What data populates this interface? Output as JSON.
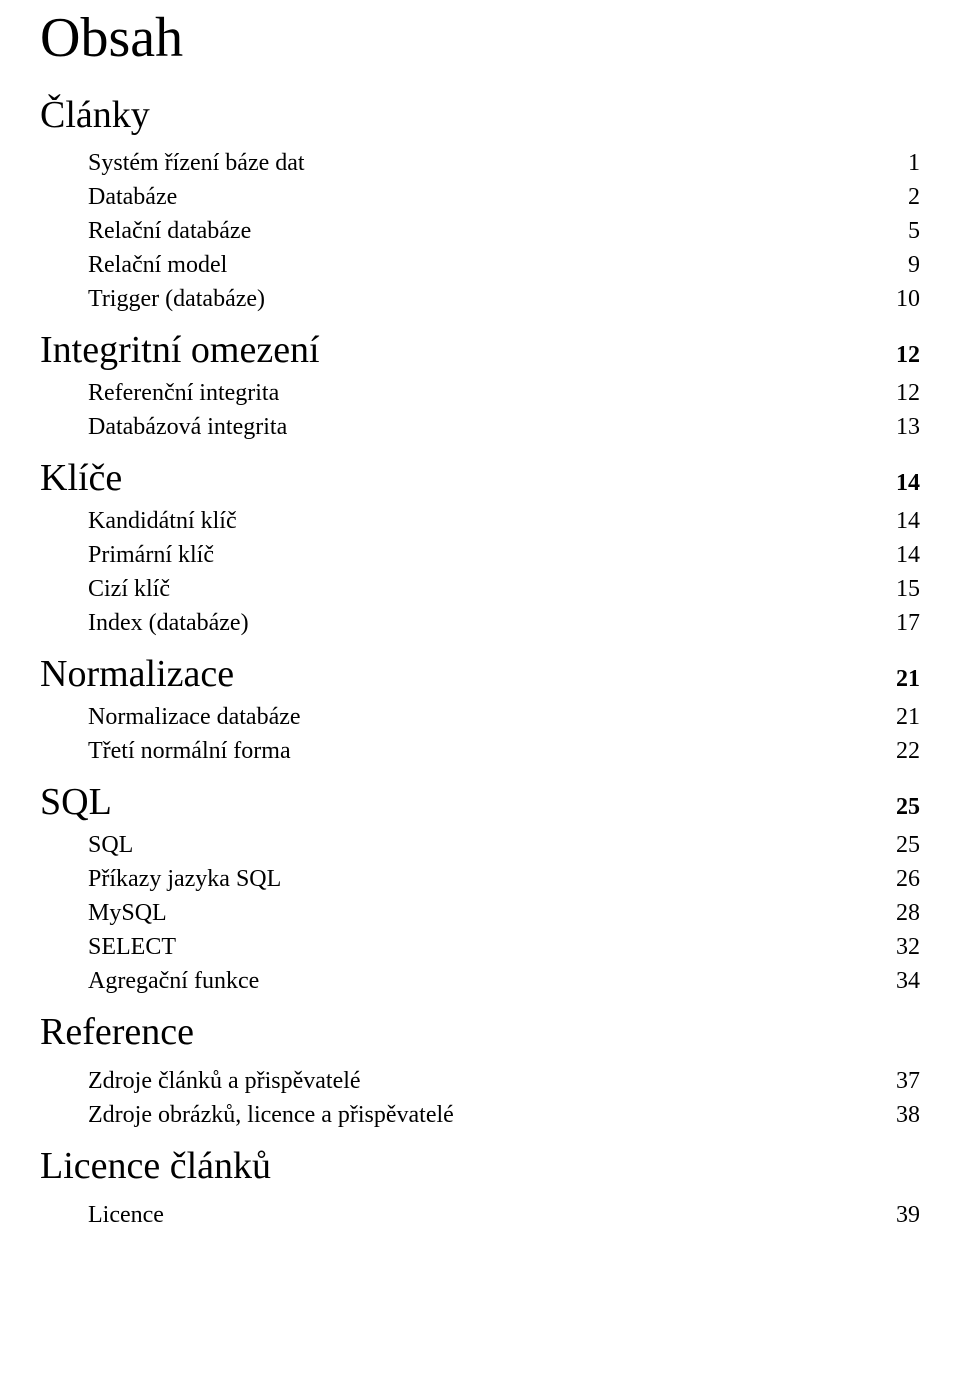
{
  "title": "Obsah",
  "sections": [
    {
      "heading": "Články",
      "page": null,
      "entries": [
        {
          "label": "Systém řízení báze dat",
          "page": "1"
        },
        {
          "label": "Databáze",
          "page": "2"
        },
        {
          "label": "Relační databáze",
          "page": "5"
        },
        {
          "label": "Relační model",
          "page": "9"
        },
        {
          "label": "Trigger (databáze)",
          "page": "10"
        }
      ]
    },
    {
      "heading": "Integritní omezení",
      "page": "12",
      "entries": [
        {
          "label": "Referenční integrita",
          "page": "12"
        },
        {
          "label": "Databázová integrita",
          "page": "13"
        }
      ]
    },
    {
      "heading": "Klíče",
      "page": "14",
      "entries": [
        {
          "label": "Kandidátní klíč",
          "page": "14"
        },
        {
          "label": "Primární klíč",
          "page": "14"
        },
        {
          "label": "Cizí klíč",
          "page": "15"
        },
        {
          "label": "Index (databáze)",
          "page": "17"
        }
      ]
    },
    {
      "heading": "Normalizace",
      "page": "21",
      "entries": [
        {
          "label": "Normalizace databáze",
          "page": "21"
        },
        {
          "label": "Třetí normální forma",
          "page": "22"
        }
      ]
    },
    {
      "heading": "SQL",
      "page": "25",
      "entries": [
        {
          "label": "SQL",
          "page": "25"
        },
        {
          "label": "Příkazy jazyka SQL",
          "page": "26"
        },
        {
          "label": "MySQL",
          "page": "28"
        },
        {
          "label": "SELECT",
          "page": "32"
        },
        {
          "label": "Agregační funkce",
          "page": "34"
        }
      ]
    },
    {
      "heading": "Reference",
      "page": null,
      "entries": [
        {
          "label": "Zdroje článků a přispěvatelé",
          "page": "37"
        },
        {
          "label": "Zdroje obrázků, licence a přispěvatelé",
          "page": "38"
        }
      ]
    },
    {
      "heading": "Licence článků",
      "page": null,
      "entries": [
        {
          "label": "Licence",
          "page": "39"
        }
      ]
    }
  ]
}
